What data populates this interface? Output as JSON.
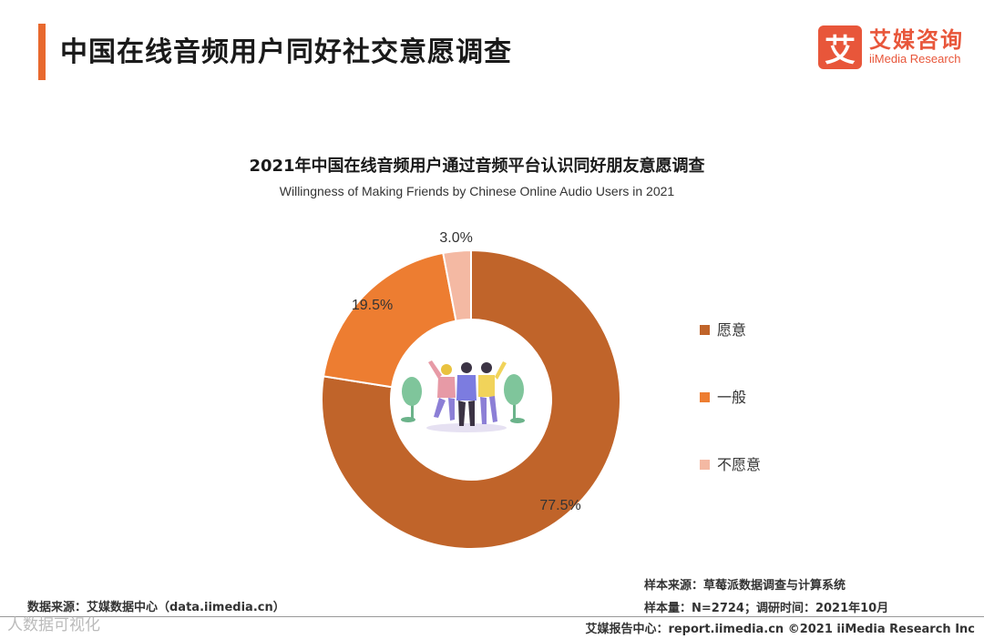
{
  "header": {
    "title": "中国在线音频用户同好社交意愿调查",
    "logo_mark": "艾",
    "logo_cn": "艾媒咨询",
    "logo_en": "iiMedia Research"
  },
  "chart_data": {
    "type": "pie",
    "title": "2021年中国在线音频用户通过音频平台认识同好朋友意愿调查",
    "subtitle": "Willingness of Making Friends by Chinese Online Audio Users in 2021",
    "unit": "%",
    "donut": true,
    "legend_position": "right",
    "slices": [
      {
        "label": "愿意",
        "value": 77.5,
        "display": "77.5%",
        "color": "#c0642a"
      },
      {
        "label": "一般",
        "value": 19.5,
        "display": "19.5%",
        "color": "#ed7d31"
      },
      {
        "label": "不愿意",
        "value": 3.0,
        "display": "3.0%",
        "color": "#f4b9a3"
      }
    ]
  },
  "footer": {
    "source": "数据来源：艾媒数据中心（data.iimedia.cn）",
    "sample_source": "样本来源：草莓派数据调查与计算系统",
    "sample_size": "样本量：N=2724；调研时间：2021年10月",
    "report_center": "艾媒报告中心：report.iimedia.cn   ©2021  iiMedia Research  Inc",
    "watermark": "人数据可视化"
  }
}
